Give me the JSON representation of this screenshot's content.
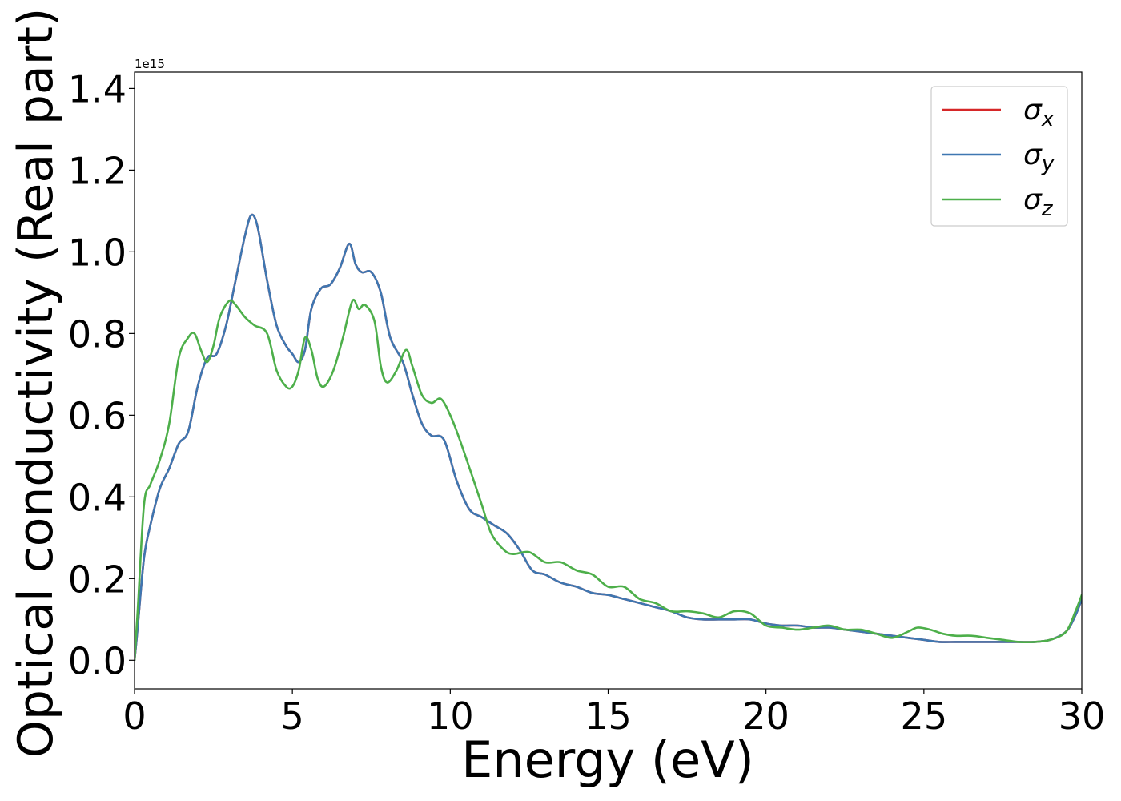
{
  "chart_data": {
    "type": "line",
    "xlabel": "Energy (eV)",
    "ylabel": "Optical conductivity (Real part)",
    "offset_label": "1e15",
    "xlim": [
      0,
      30
    ],
    "ylim": [
      -0.07,
      1.44
    ],
    "x_ticks": [
      0,
      5,
      10,
      15,
      20,
      25,
      30
    ],
    "y_ticks": [
      0.0,
      0.2,
      0.4,
      0.6,
      0.8,
      1.0,
      1.2,
      1.4
    ],
    "x_tick_labels": [
      "0",
      "5",
      "10",
      "15",
      "20",
      "25",
      "30"
    ],
    "y_tick_labels": [
      "0.0",
      "0.2",
      "0.4",
      "0.6",
      "0.8",
      "1.0",
      "1.2",
      "1.4"
    ],
    "grid": false,
    "legend_position": "top-right",
    "series": [
      {
        "name": "σx",
        "base": "σ",
        "sub": "x",
        "color": "#d62728",
        "points": [
          [
            0,
            0
          ],
          [
            0.1,
            0.08
          ],
          [
            0.3,
            0.25
          ],
          [
            0.5,
            0.33
          ],
          [
            0.8,
            0.42
          ],
          [
            1.1,
            0.47
          ],
          [
            1.4,
            0.53
          ],
          [
            1.7,
            0.56
          ],
          [
            2.0,
            0.67
          ],
          [
            2.3,
            0.74
          ],
          [
            2.6,
            0.75
          ],
          [
            2.9,
            0.82
          ],
          [
            3.2,
            0.93
          ],
          [
            3.5,
            1.04
          ],
          [
            3.7,
            1.09
          ],
          [
            3.9,
            1.06
          ],
          [
            4.2,
            0.93
          ],
          [
            4.5,
            0.82
          ],
          [
            4.8,
            0.77
          ],
          [
            5.0,
            0.75
          ],
          [
            5.2,
            0.73
          ],
          [
            5.4,
            0.76
          ],
          [
            5.6,
            0.86
          ],
          [
            5.9,
            0.91
          ],
          [
            6.2,
            0.92
          ],
          [
            6.5,
            0.96
          ],
          [
            6.8,
            1.02
          ],
          [
            7.0,
            0.97
          ],
          [
            7.2,
            0.95
          ],
          [
            7.5,
            0.95
          ],
          [
            7.8,
            0.9
          ],
          [
            8.1,
            0.79
          ],
          [
            8.5,
            0.73
          ],
          [
            8.8,
            0.65
          ],
          [
            9.1,
            0.58
          ],
          [
            9.4,
            0.55
          ],
          [
            9.8,
            0.54
          ],
          [
            10.2,
            0.44
          ],
          [
            10.6,
            0.37
          ],
          [
            11.0,
            0.35
          ],
          [
            11.4,
            0.33
          ],
          [
            11.8,
            0.31
          ],
          [
            12.2,
            0.27
          ],
          [
            12.6,
            0.22
          ],
          [
            13.0,
            0.21
          ],
          [
            13.5,
            0.19
          ],
          [
            14.0,
            0.18
          ],
          [
            14.5,
            0.165
          ],
          [
            15.0,
            0.16
          ],
          [
            15.5,
            0.15
          ],
          [
            16.0,
            0.14
          ],
          [
            16.5,
            0.13
          ],
          [
            17.0,
            0.12
          ],
          [
            17.5,
            0.105
          ],
          [
            18.0,
            0.1
          ],
          [
            18.5,
            0.1
          ],
          [
            19.0,
            0.1
          ],
          [
            19.5,
            0.1
          ],
          [
            20.0,
            0.09
          ],
          [
            20.5,
            0.085
          ],
          [
            21.0,
            0.085
          ],
          [
            21.5,
            0.08
          ],
          [
            22.0,
            0.08
          ],
          [
            22.5,
            0.075
          ],
          [
            23.0,
            0.07
          ],
          [
            23.5,
            0.065
          ],
          [
            24.0,
            0.06
          ],
          [
            24.5,
            0.055
          ],
          [
            25.0,
            0.05
          ],
          [
            25.5,
            0.045
          ],
          [
            26.0,
            0.045
          ],
          [
            26.5,
            0.045
          ],
          [
            27.0,
            0.045
          ],
          [
            27.5,
            0.045
          ],
          [
            28.0,
            0.045
          ],
          [
            28.5,
            0.045
          ],
          [
            29.0,
            0.05
          ],
          [
            29.5,
            0.07
          ],
          [
            29.8,
            0.11
          ],
          [
            30.0,
            0.15
          ]
        ]
      },
      {
        "name": "σy",
        "base": "σ",
        "sub": "y",
        "color": "#3e77b1",
        "points": [
          [
            0,
            0
          ],
          [
            0.1,
            0.08
          ],
          [
            0.3,
            0.25
          ],
          [
            0.5,
            0.33
          ],
          [
            0.8,
            0.42
          ],
          [
            1.1,
            0.47
          ],
          [
            1.4,
            0.53
          ],
          [
            1.7,
            0.56
          ],
          [
            2.0,
            0.67
          ],
          [
            2.3,
            0.74
          ],
          [
            2.6,
            0.75
          ],
          [
            2.9,
            0.82
          ],
          [
            3.2,
            0.93
          ],
          [
            3.5,
            1.04
          ],
          [
            3.7,
            1.09
          ],
          [
            3.9,
            1.06
          ],
          [
            4.2,
            0.93
          ],
          [
            4.5,
            0.82
          ],
          [
            4.8,
            0.77
          ],
          [
            5.0,
            0.75
          ],
          [
            5.2,
            0.73
          ],
          [
            5.4,
            0.76
          ],
          [
            5.6,
            0.86
          ],
          [
            5.9,
            0.91
          ],
          [
            6.2,
            0.92
          ],
          [
            6.5,
            0.96
          ],
          [
            6.8,
            1.02
          ],
          [
            7.0,
            0.97
          ],
          [
            7.2,
            0.95
          ],
          [
            7.5,
            0.95
          ],
          [
            7.8,
            0.9
          ],
          [
            8.1,
            0.79
          ],
          [
            8.5,
            0.73
          ],
          [
            8.8,
            0.65
          ],
          [
            9.1,
            0.58
          ],
          [
            9.4,
            0.55
          ],
          [
            9.8,
            0.54
          ],
          [
            10.2,
            0.44
          ],
          [
            10.6,
            0.37
          ],
          [
            11.0,
            0.35
          ],
          [
            11.4,
            0.33
          ],
          [
            11.8,
            0.31
          ],
          [
            12.2,
            0.27
          ],
          [
            12.6,
            0.22
          ],
          [
            13.0,
            0.21
          ],
          [
            13.5,
            0.19
          ],
          [
            14.0,
            0.18
          ],
          [
            14.5,
            0.165
          ],
          [
            15.0,
            0.16
          ],
          [
            15.5,
            0.15
          ],
          [
            16.0,
            0.14
          ],
          [
            16.5,
            0.13
          ],
          [
            17.0,
            0.12
          ],
          [
            17.5,
            0.105
          ],
          [
            18.0,
            0.1
          ],
          [
            18.5,
            0.1
          ],
          [
            19.0,
            0.1
          ],
          [
            19.5,
            0.1
          ],
          [
            20.0,
            0.09
          ],
          [
            20.5,
            0.085
          ],
          [
            21.0,
            0.085
          ],
          [
            21.5,
            0.08
          ],
          [
            22.0,
            0.08
          ],
          [
            22.5,
            0.075
          ],
          [
            23.0,
            0.07
          ],
          [
            23.5,
            0.065
          ],
          [
            24.0,
            0.06
          ],
          [
            24.5,
            0.055
          ],
          [
            25.0,
            0.05
          ],
          [
            25.5,
            0.045
          ],
          [
            26.0,
            0.045
          ],
          [
            26.5,
            0.045
          ],
          [
            27.0,
            0.045
          ],
          [
            27.5,
            0.045
          ],
          [
            28.0,
            0.045
          ],
          [
            28.5,
            0.045
          ],
          [
            29.0,
            0.05
          ],
          [
            29.5,
            0.07
          ],
          [
            29.8,
            0.11
          ],
          [
            30.0,
            0.15
          ]
        ]
      },
      {
        "name": "σz",
        "base": "σ",
        "sub": "z",
        "color": "#4daf4a",
        "points": [
          [
            0,
            0
          ],
          [
            0.1,
            0.12
          ],
          [
            0.3,
            0.38
          ],
          [
            0.5,
            0.43
          ],
          [
            0.8,
            0.49
          ],
          [
            1.1,
            0.58
          ],
          [
            1.4,
            0.74
          ],
          [
            1.7,
            0.79
          ],
          [
            1.9,
            0.8
          ],
          [
            2.1,
            0.76
          ],
          [
            2.3,
            0.73
          ],
          [
            2.5,
            0.77
          ],
          [
            2.7,
            0.84
          ],
          [
            3.0,
            0.88
          ],
          [
            3.2,
            0.87
          ],
          [
            3.5,
            0.84
          ],
          [
            3.8,
            0.82
          ],
          [
            4.2,
            0.8
          ],
          [
            4.5,
            0.71
          ],
          [
            4.8,
            0.67
          ],
          [
            5.0,
            0.67
          ],
          [
            5.2,
            0.71
          ],
          [
            5.4,
            0.79
          ],
          [
            5.6,
            0.76
          ],
          [
            5.8,
            0.69
          ],
          [
            6.0,
            0.67
          ],
          [
            6.3,
            0.71
          ],
          [
            6.6,
            0.79
          ],
          [
            6.9,
            0.88
          ],
          [
            7.1,
            0.86
          ],
          [
            7.3,
            0.87
          ],
          [
            7.6,
            0.83
          ],
          [
            7.8,
            0.72
          ],
          [
            8.0,
            0.68
          ],
          [
            8.3,
            0.71
          ],
          [
            8.6,
            0.76
          ],
          [
            8.8,
            0.72
          ],
          [
            9.1,
            0.65
          ],
          [
            9.4,
            0.63
          ],
          [
            9.7,
            0.64
          ],
          [
            10.0,
            0.6
          ],
          [
            10.3,
            0.54
          ],
          [
            10.7,
            0.45
          ],
          [
            11.0,
            0.38
          ],
          [
            11.3,
            0.31
          ],
          [
            11.7,
            0.27
          ],
          [
            12.0,
            0.26
          ],
          [
            12.5,
            0.265
          ],
          [
            13.0,
            0.24
          ],
          [
            13.5,
            0.24
          ],
          [
            14.0,
            0.22
          ],
          [
            14.5,
            0.21
          ],
          [
            15.0,
            0.18
          ],
          [
            15.5,
            0.18
          ],
          [
            16.0,
            0.15
          ],
          [
            16.5,
            0.14
          ],
          [
            17.0,
            0.12
          ],
          [
            17.5,
            0.12
          ],
          [
            18.0,
            0.115
          ],
          [
            18.5,
            0.105
          ],
          [
            19.0,
            0.12
          ],
          [
            19.5,
            0.115
          ],
          [
            20.0,
            0.085
          ],
          [
            20.5,
            0.08
          ],
          [
            21.0,
            0.075
          ],
          [
            21.5,
            0.08
          ],
          [
            22.0,
            0.085
          ],
          [
            22.5,
            0.075
          ],
          [
            23.0,
            0.075
          ],
          [
            23.5,
            0.065
          ],
          [
            24.0,
            0.055
          ],
          [
            24.5,
            0.07
          ],
          [
            24.8,
            0.08
          ],
          [
            25.2,
            0.075
          ],
          [
            25.6,
            0.065
          ],
          [
            26.0,
            0.06
          ],
          [
            26.5,
            0.06
          ],
          [
            27.0,
            0.055
          ],
          [
            27.5,
            0.05
          ],
          [
            28.0,
            0.045
          ],
          [
            28.5,
            0.045
          ],
          [
            29.0,
            0.05
          ],
          [
            29.5,
            0.07
          ],
          [
            29.8,
            0.12
          ],
          [
            30.0,
            0.16
          ]
        ]
      }
    ]
  }
}
